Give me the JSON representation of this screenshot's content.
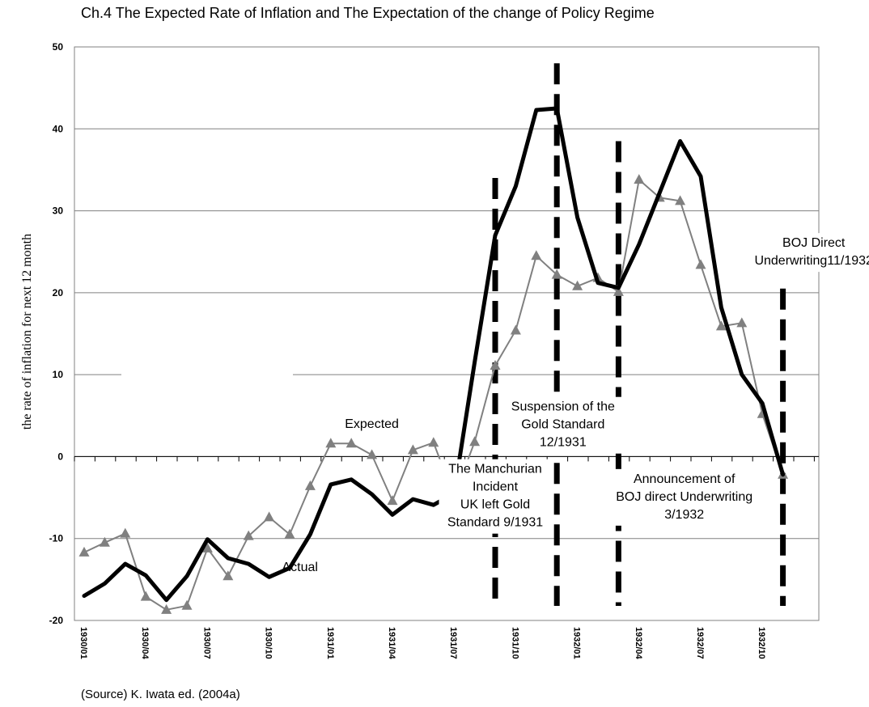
{
  "chart_data": {
    "type": "line",
    "title": "Ch.4 The Expected Rate of Inflation and The Expectation of the change of Policy Regime",
    "ylabel": "the rate of inflation for next 12 month",
    "xlabel": "",
    "ylim": [
      -20,
      50
    ],
    "yticks": [
      -20,
      -10,
      0,
      10,
      20,
      30,
      40,
      50
    ],
    "grid": "horizontal",
    "x_months": [
      "1930/01",
      "1930/02",
      "1930/03",
      "1930/04",
      "1930/05",
      "1930/06",
      "1930/07",
      "1930/08",
      "1930/09",
      "1930/10",
      "1930/11",
      "1930/12",
      "1931/01",
      "1931/02",
      "1931/03",
      "1931/04",
      "1931/05",
      "1931/06",
      "1931/07",
      "1931/08",
      "1931/09",
      "1931/10",
      "1931/11",
      "1931/12",
      "1932/01",
      "1932/02",
      "1932/03",
      "1932/04",
      "1932/05",
      "1932/06",
      "1932/07",
      "1932/08",
      "1932/09",
      "1932/10",
      "1932/11",
      "1932/12"
    ],
    "x_tick_labels": [
      {
        "i": 0,
        "label": "1930/01"
      },
      {
        "i": 3,
        "label": "1930/04"
      },
      {
        "i": 6,
        "label": "1930/07"
      },
      {
        "i": 9,
        "label": "1930/10"
      },
      {
        "i": 12,
        "label": "1931/01"
      },
      {
        "i": 15,
        "label": "1931/04"
      },
      {
        "i": 18,
        "label": "1931/07"
      },
      {
        "i": 21,
        "label": "1931/10"
      },
      {
        "i": 24,
        "label": "1932/01"
      },
      {
        "i": 27,
        "label": "1932/04"
      },
      {
        "i": 30,
        "label": "1932/07"
      },
      {
        "i": 33,
        "label": "1932/10"
      }
    ],
    "series": [
      {
        "name": "Expected",
        "color": "#808080",
        "marker": "triangle",
        "label_at": {
          "i": 14,
          "y": 3.5
        },
        "values": [
          -11.7,
          -10.5,
          -9.4,
          -17.1,
          -18.7,
          -18.2,
          -11.2,
          -14.6,
          -9.7,
          -7.4,
          -9.5,
          -3.6,
          1.6,
          1.6,
          0.2,
          -5.4,
          0.8,
          1.7,
          -4.9,
          1.8,
          11.1,
          15.4,
          24.5,
          22.2,
          20.8,
          21.8,
          20.1,
          33.8,
          31.6,
          31.2,
          23.4,
          15.9,
          16.3,
          5.2,
          -2.2,
          null
        ]
      },
      {
        "name": "Actual",
        "color": "#000000",
        "marker": "none",
        "label_at": {
          "i": 10.5,
          "y": -14
        },
        "values": [
          -17.0,
          -15.5,
          -13.1,
          -14.5,
          -17.5,
          -14.6,
          -10.1,
          -12.4,
          -13.1,
          -14.7,
          -13.6,
          -9.5,
          -3.4,
          -2.8,
          -4.6,
          -7.1,
          -5.2,
          -5.9,
          -4.5,
          11.5,
          27.0,
          33.0,
          42.3,
          42.5,
          29.2,
          21.2,
          20.6,
          25.9,
          32.2,
          38.5,
          34.2,
          18.2,
          10.0,
          6.5,
          -2.2,
          null
        ]
      }
    ],
    "events": [
      {
        "i": 20.0,
        "top": 34,
        "lines": [
          "The Manchurian",
          "Incident",
          "UK left Gold",
          "Standard 9/1931"
        ],
        "label_i": 20.0,
        "label_y": -2.0
      },
      {
        "i": 23.0,
        "top": 48,
        "lines": [
          "Suspension of the",
          "Gold Standard",
          "12/1931"
        ],
        "label_i": 23.3,
        "label_y": 5.6
      },
      {
        "i": 26.0,
        "top": 38.5,
        "lines": [
          "Announcement of",
          "BOJ direct Underwriting",
          "3/1932"
        ],
        "label_i": 29.2,
        "label_y": -3.2
      },
      {
        "i": 34.0,
        "top": 20.5,
        "lines": [
          "BOJ Direct",
          "Underwriting11/1932"
        ],
        "label_i": 35.5,
        "label_y": 25.6
      }
    ]
  },
  "source_note": "(Source) K. Iwata ed. (2004a)"
}
